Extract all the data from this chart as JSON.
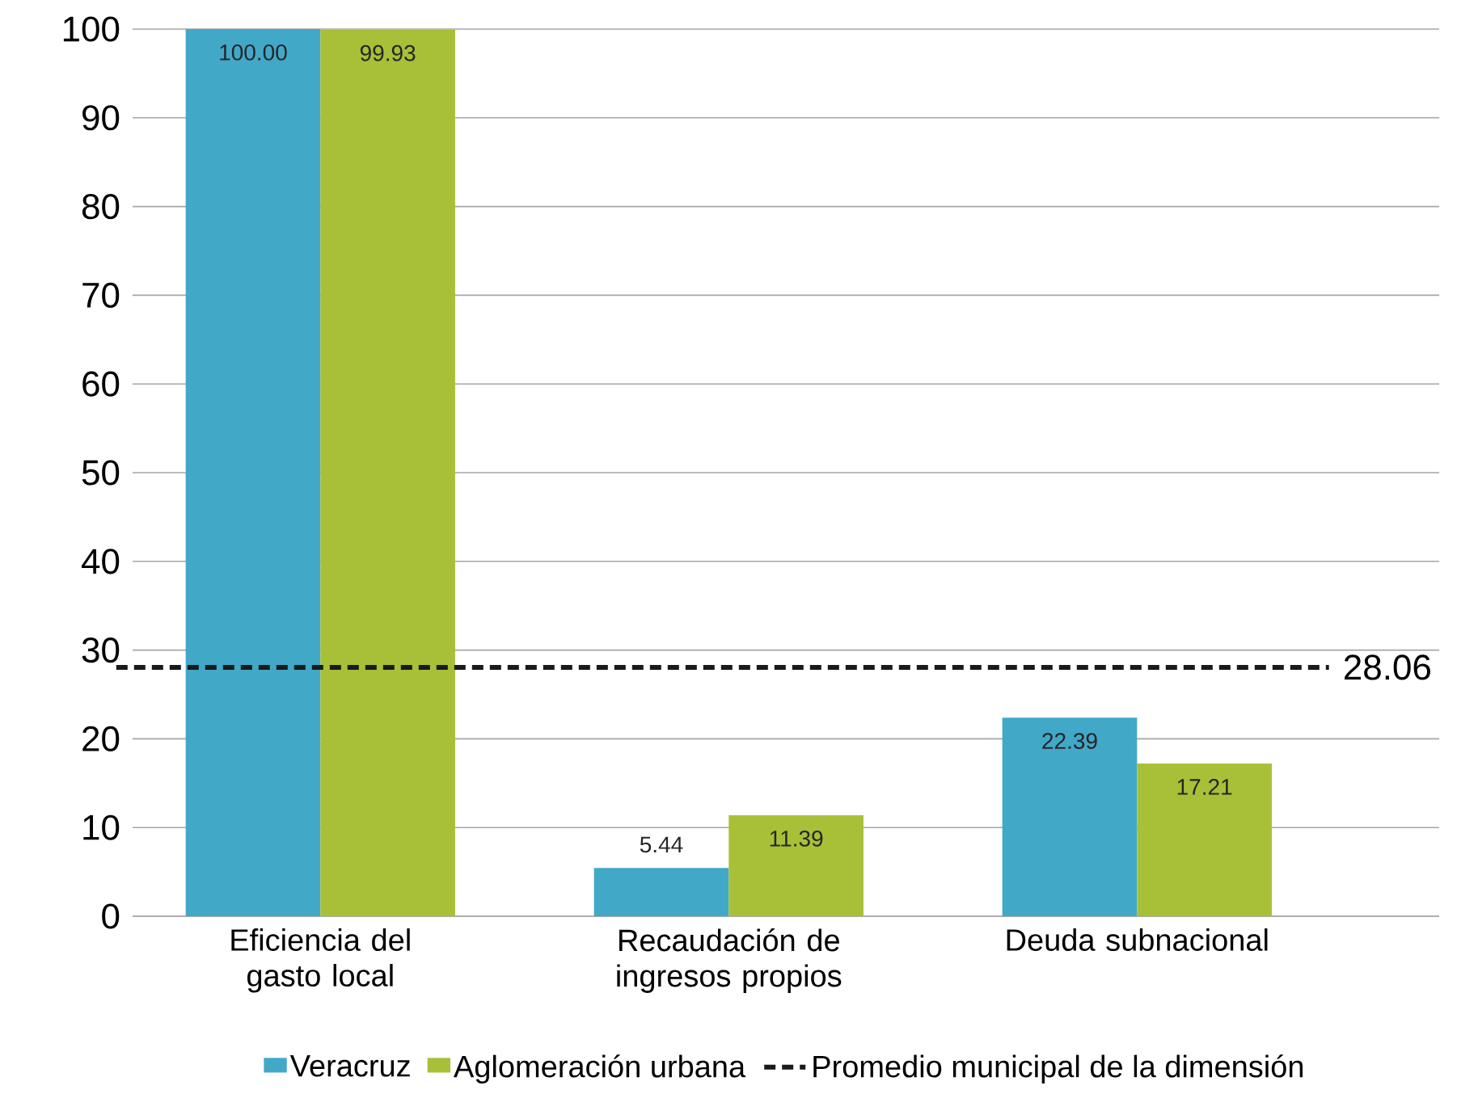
{
  "chart_data": {
    "type": "bar",
    "categories": [
      "Eficiencia del gasto local",
      "Recaudación de ingresos propios",
      "Deuda subnacional"
    ],
    "series": [
      {
        "name": "Veracruz",
        "color": "#42a8c8",
        "values": [
          100.0,
          5.44,
          22.39
        ],
        "value_labels": [
          "100.00",
          "5.44",
          "22.39"
        ]
      },
      {
        "name": "Aglomeración urbana",
        "color": "#a8c038",
        "values": [
          99.93,
          11.39,
          17.21
        ],
        "value_labels": [
          "99.93",
          "11.39",
          "17.21"
        ]
      }
    ],
    "ylim": [
      0,
      100
    ],
    "yticks": [
      0,
      10,
      20,
      30,
      40,
      50,
      60,
      70,
      80,
      90,
      100
    ],
    "grid": "y",
    "legend": "bottom",
    "annotations": [
      "28.06"
    ],
    "ref_lines": [
      {
        "axis": "y",
        "value": 28.06,
        "label": "Promedio municipal de la dimensión",
        "color": "#1a1a1a",
        "line_style": "dashed"
      }
    ]
  }
}
